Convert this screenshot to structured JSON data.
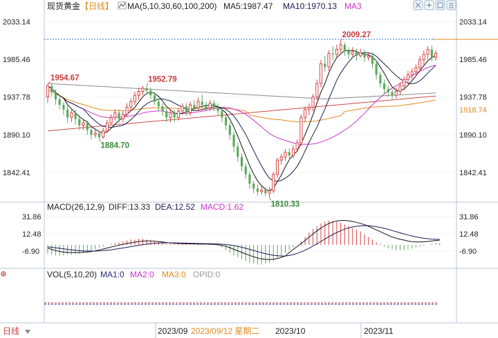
{
  "header": {
    "title": "现货黄金",
    "period": "【日线】",
    "ma_label": "MA(5,10,30,60,100,200)",
    "ma5": "MA5:1987.47",
    "ma10": "MA10:1970.13",
    "ma3": "MA3"
  },
  "macd_header": {
    "label": "MACD(26,12,9)",
    "diff": "DIFF:13.33",
    "dea": "DEA:12.52",
    "macd": "MACD:1.62"
  },
  "vol_header": {
    "label": "VOL(5,10,20)",
    "ma1": "MA1:0",
    "ma2": "MA2:0",
    "ma3": "MA3:0",
    "opid": "OPID:0"
  },
  "footer": {
    "period_label": "日线",
    "month1": "2023/09",
    "hover_date": "2023/09/12 星期二",
    "month2": "2023/10",
    "month3": "2023/11"
  },
  "colors": {
    "up": "#d94444",
    "down": "#5aa85a",
    "ma5": "#111111",
    "ma10": "#1a1a55",
    "ma30": "#cc33cc",
    "ma60": "#e08a1e",
    "ma100": "#c84848",
    "ma200": "#8a8a8a",
    "diff": "#111111",
    "dea": "#1a1a55",
    "vol_ma1": "#2a2a88",
    "vol_ma2": "#cc33cc",
    "vol_ma3": "#e08a1e",
    "opid": "#999999"
  },
  "chart_data": {
    "type": "candlestick",
    "price_axis": {
      "ticks": [
        "2033.14",
        "1985.46",
        "1937.78",
        "1890.10",
        "1842.41"
      ],
      "range": [
        1810,
        2045
      ]
    },
    "current_price_tag": "1918.74",
    "annotations": [
      {
        "label": "1954.67",
        "index": 0,
        "value": 1954.67
      },
      {
        "label": "1884.70",
        "index": 13,
        "value": 1884.7
      },
      {
        "label": "1952.79",
        "index": 25,
        "value": 1952.79
      },
      {
        "label": "1810.33",
        "index": 56,
        "value": 1810.33
      },
      {
        "label": "2009.27",
        "index": 74,
        "value": 2009.27
      }
    ],
    "candles": [
      [
        1938,
        1952,
        1954.67,
        1930
      ],
      [
        1952,
        1944,
        1956,
        1938
      ],
      [
        1944,
        1935,
        1948,
        1928
      ],
      [
        1935,
        1928,
        1940,
        1922
      ],
      [
        1928,
        1922,
        1932,
        1915
      ],
      [
        1922,
        1912,
        1927,
        1905
      ],
      [
        1912,
        1918,
        1924,
        1906
      ],
      [
        1918,
        1910,
        1922,
        1903
      ],
      [
        1910,
        1902,
        1915,
        1896
      ],
      [
        1902,
        1905,
        1910,
        1896
      ],
      [
        1905,
        1896,
        1908,
        1890
      ],
      [
        1896,
        1890,
        1900,
        1884
      ],
      [
        1890,
        1892,
        1898,
        1886
      ],
      [
        1892,
        1887,
        1895,
        1884.7
      ],
      [
        1887,
        1895,
        1899,
        1885
      ],
      [
        1895,
        1905,
        1909,
        1892
      ],
      [
        1905,
        1912,
        1916,
        1902
      ],
      [
        1912,
        1918,
        1922,
        1908
      ],
      [
        1918,
        1910,
        1922,
        1905
      ],
      [
        1910,
        1916,
        1920,
        1906
      ],
      [
        1916,
        1925,
        1930,
        1912
      ],
      [
        1925,
        1932,
        1936,
        1920
      ],
      [
        1932,
        1940,
        1945,
        1928
      ],
      [
        1940,
        1945,
        1950,
        1934
      ],
      [
        1945,
        1949,
        1952,
        1940
      ],
      [
        1949,
        1946,
        1952.79,
        1941
      ],
      [
        1946,
        1940,
        1950,
        1935
      ],
      [
        1940,
        1932,
        1944,
        1928
      ],
      [
        1932,
        1926,
        1936,
        1920
      ],
      [
        1926,
        1920,
        1930,
        1914
      ],
      [
        1920,
        1912,
        1924,
        1906
      ],
      [
        1912,
        1918,
        1922,
        1906
      ],
      [
        1918,
        1912,
        1922,
        1906
      ],
      [
        1912,
        1920,
        1924,
        1908
      ],
      [
        1920,
        1926,
        1930,
        1915
      ],
      [
        1926,
        1918,
        1930,
        1914
      ],
      [
        1918,
        1928,
        1932,
        1914
      ],
      [
        1928,
        1924,
        1934,
        1920
      ],
      [
        1924,
        1932,
        1937,
        1920
      ],
      [
        1932,
        1928,
        1941,
        1924
      ],
      [
        1928,
        1924,
        1932,
        1920
      ],
      [
        1924,
        1930,
        1934,
        1920
      ],
      [
        1930,
        1925,
        1934,
        1920
      ],
      [
        1925,
        1920,
        1930,
        1915
      ],
      [
        1920,
        1912,
        1925,
        1906
      ],
      [
        1912,
        1902,
        1916,
        1896
      ],
      [
        1902,
        1890,
        1906,
        1884
      ],
      [
        1890,
        1875,
        1894,
        1868
      ],
      [
        1875,
        1862,
        1880,
        1856
      ],
      [
        1862,
        1850,
        1867,
        1844
      ],
      [
        1850,
        1840,
        1854,
        1834
      ],
      [
        1840,
        1828,
        1844,
        1822
      ],
      [
        1828,
        1822,
        1832,
        1816
      ],
      [
        1822,
        1818,
        1827,
        1813
      ],
      [
        1818,
        1820,
        1825,
        1814
      ],
      [
        1820,
        1816,
        1824,
        1812
      ],
      [
        1816,
        1819,
        1824,
        1810.33
      ],
      [
        1819,
        1840,
        1843,
        1816
      ],
      [
        1840,
        1858,
        1861,
        1836
      ],
      [
        1858,
        1862,
        1866,
        1852
      ],
      [
        1862,
        1868,
        1872,
        1857
      ],
      [
        1868,
        1864,
        1873,
        1858
      ],
      [
        1864,
        1872,
        1877,
        1860
      ],
      [
        1872,
        1880,
        1884,
        1868
      ],
      [
        1880,
        1912,
        1916,
        1876
      ],
      [
        1912,
        1922,
        1926,
        1906
      ],
      [
        1922,
        1925,
        1930,
        1915
      ],
      [
        1925,
        1938,
        1942,
        1920
      ],
      [
        1938,
        1955,
        1960,
        1934
      ],
      [
        1955,
        1980,
        1985,
        1950
      ],
      [
        1980,
        1976,
        1990,
        1970
      ],
      [
        1976,
        1993,
        1997,
        1971
      ],
      [
        1993,
        1992,
        2002,
        1985
      ],
      [
        1992,
        1998,
        2004,
        1988
      ],
      [
        1998,
        2004,
        2009.27,
        1994
      ],
      [
        2004,
        1996,
        2007,
        1990
      ],
      [
        1996,
        1992,
        2001,
        1986
      ],
      [
        1992,
        1995,
        2001,
        1989
      ],
      [
        1995,
        1990,
        1999,
        1984
      ],
      [
        1990,
        1994,
        1999,
        1988
      ],
      [
        1994,
        1988,
        1998,
        1982
      ],
      [
        1988,
        1990,
        1994,
        1984
      ],
      [
        1990,
        1980,
        1994,
        1974
      ],
      [
        1980,
        1966,
        1984,
        1960
      ],
      [
        1966,
        1955,
        1970,
        1950
      ],
      [
        1955,
        1948,
        1960,
        1942
      ],
      [
        1948,
        1944,
        1952,
        1938
      ],
      [
        1944,
        1940,
        1948,
        1935
      ],
      [
        1940,
        1945,
        1950,
        1936
      ],
      [
        1945,
        1952,
        1956,
        1941
      ],
      [
        1952,
        1960,
        1964,
        1946
      ],
      [
        1960,
        1966,
        1971,
        1954
      ],
      [
        1966,
        1970,
        1974,
        1960
      ],
      [
        1970,
        1975,
        1979,
        1964
      ],
      [
        1975,
        1985,
        1990,
        1970
      ],
      [
        1985,
        1992,
        1997,
        1978
      ],
      [
        1992,
        1998,
        2002,
        1986
      ],
      [
        1998,
        1988,
        2003,
        1983
      ],
      [
        1988,
        1993,
        1997,
        1984
      ]
    ],
    "ma_series": [
      {
        "name": "MA5"
      },
      {
        "name": "MA10"
      },
      {
        "name": "MA3"
      }
    ],
    "macd": {
      "ticks": [
        "31.86",
        "12.48",
        "-6.90"
      ],
      "range": [
        -24,
        38
      ],
      "hist": [
        -10,
        -11,
        -12,
        -12,
        -12,
        -11,
        -11,
        -10,
        -10,
        -9,
        -8,
        -7,
        -5,
        -3,
        -2,
        0,
        1,
        2,
        3,
        4,
        5,
        6,
        6,
        7,
        7,
        6,
        5,
        4,
        3,
        2,
        1,
        1,
        1,
        1,
        1,
        1,
        1,
        1,
        1,
        1,
        1,
        0,
        0,
        -1,
        -3,
        -6,
        -9,
        -12,
        -14,
        -16,
        -18,
        -20,
        -21,
        -22,
        -22,
        -21,
        -20,
        -18,
        -15,
        -12,
        -9,
        -6,
        -3,
        0,
        4,
        9,
        14,
        18,
        21,
        24,
        26,
        27,
        27,
        26,
        25,
        23,
        21,
        19,
        17,
        15,
        12,
        9,
        6,
        3,
        1,
        -2,
        -4,
        -5,
        -6,
        -6,
        -6,
        -5,
        -4,
        -3,
        -2,
        -1,
        0,
        1,
        2,
        2
      ]
    },
    "volume": {
      "values": [
        0,
        0,
        0
      ],
      "note": "MA1:0 MA2:0 MA3:0"
    }
  }
}
